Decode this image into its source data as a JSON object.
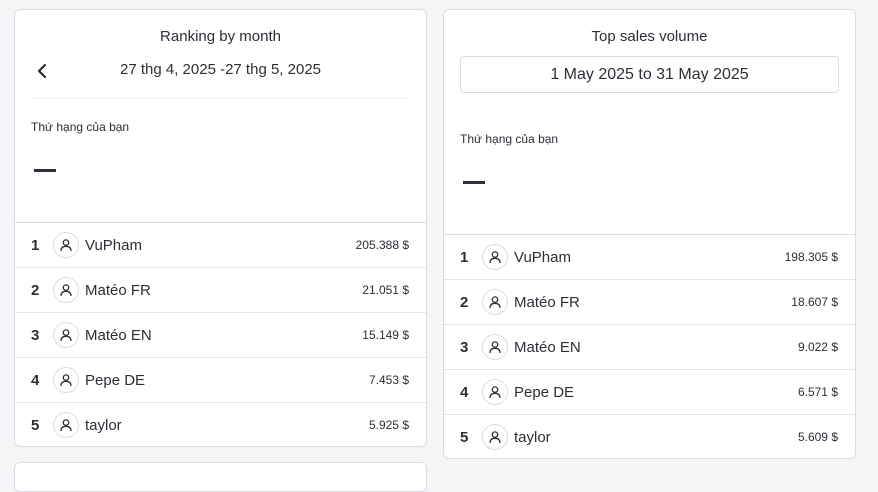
{
  "left_panel": {
    "title": "Ranking by month",
    "date_range": "27 thg 4, 2025 -27 thg 5, 2025",
    "your_rank_label": "Thứ hạng của bạn",
    "rows": [
      {
        "rank": "1",
        "name": "VuPham",
        "amount": "205.388 $"
      },
      {
        "rank": "2",
        "name": "Matéo FR",
        "amount": "21.051 $"
      },
      {
        "rank": "3",
        "name": "Matéo EN",
        "amount": "15.149 $"
      },
      {
        "rank": "4",
        "name": "Pepe DE",
        "amount": "7.453 $"
      },
      {
        "rank": "5",
        "name": "taylor",
        "amount": "5.925 $"
      }
    ]
  },
  "right_panel": {
    "title": "Top sales volume",
    "date_range": "1 May 2025 to 31 May 2025",
    "your_rank_label": "Thứ hạng của bạn",
    "rows": [
      {
        "rank": "1",
        "name": "VuPham",
        "amount": "198.305 $"
      },
      {
        "rank": "2",
        "name": "Matéo FR",
        "amount": "18.607 $"
      },
      {
        "rank": "3",
        "name": "Matéo EN",
        "amount": "9.022 $"
      },
      {
        "rank": "4",
        "name": "Pepe DE",
        "amount": "6.571 $"
      },
      {
        "rank": "5",
        "name": "taylor",
        "amount": "5.609 $"
      }
    ]
  },
  "icons": {
    "back": "chevron-left-icon",
    "avatar": "user-icon"
  }
}
